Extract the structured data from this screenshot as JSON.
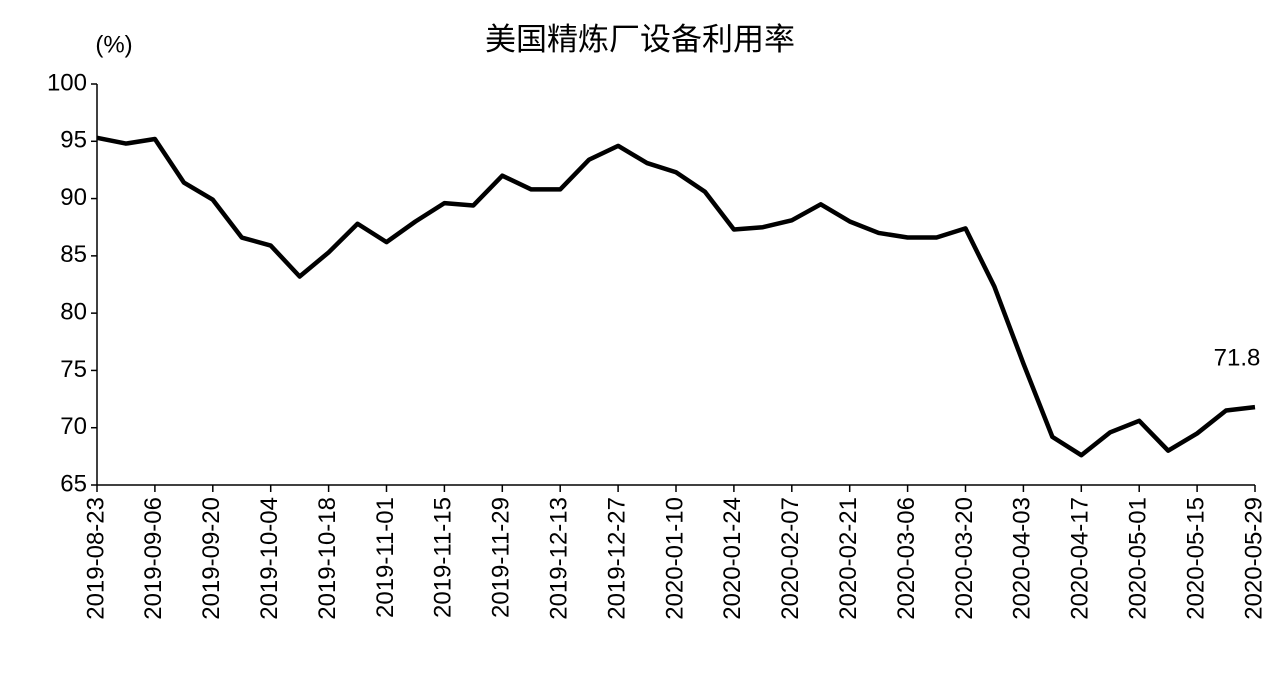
{
  "chart_data": {
    "type": "line",
    "title": "美国精炼厂设备利用率",
    "y_label": "(%)",
    "categories": [
      "2019-08-23",
      null,
      "2019-09-06",
      null,
      "2019-09-20",
      null,
      "2019-10-04",
      null,
      "2019-10-18",
      null,
      "2019-11-01",
      null,
      "2019-11-15",
      null,
      "2019-11-29",
      null,
      "2019-12-13",
      null,
      "2019-12-27",
      null,
      "2020-01-10",
      null,
      "2020-01-24",
      null,
      "2020-02-07",
      null,
      "2020-02-21",
      null,
      "2020-03-06",
      null,
      "2020-03-20",
      null,
      "2020-04-03",
      null,
      "2020-04-17",
      null,
      "2020-05-01",
      null,
      "2020-05-15",
      null,
      "2020-05-29"
    ],
    "series": [
      {
        "name": "美国精炼厂设备利用率",
        "color": "#000000",
        "values": [
          95.3,
          94.8,
          95.2,
          91.4,
          89.9,
          86.6,
          85.9,
          83.2,
          85.3,
          87.8,
          86.2,
          88.0,
          89.6,
          89.4,
          92.0,
          90.8,
          90.8,
          93.4,
          94.6,
          93.1,
          92.3,
          90.6,
          87.3,
          87.5,
          88.1,
          89.5,
          88.0,
          87.0,
          86.6,
          86.6,
          87.4,
          82.3,
          75.6,
          69.2,
          67.6,
          69.6,
          70.6,
          68.0,
          69.5,
          71.5,
          71.8
        ]
      }
    ],
    "ylim": [
      65,
      100
    ],
    "yticks": [
      65,
      70,
      75,
      80,
      85,
      90,
      95,
      100
    ],
    "grid": false,
    "legend": false
  }
}
